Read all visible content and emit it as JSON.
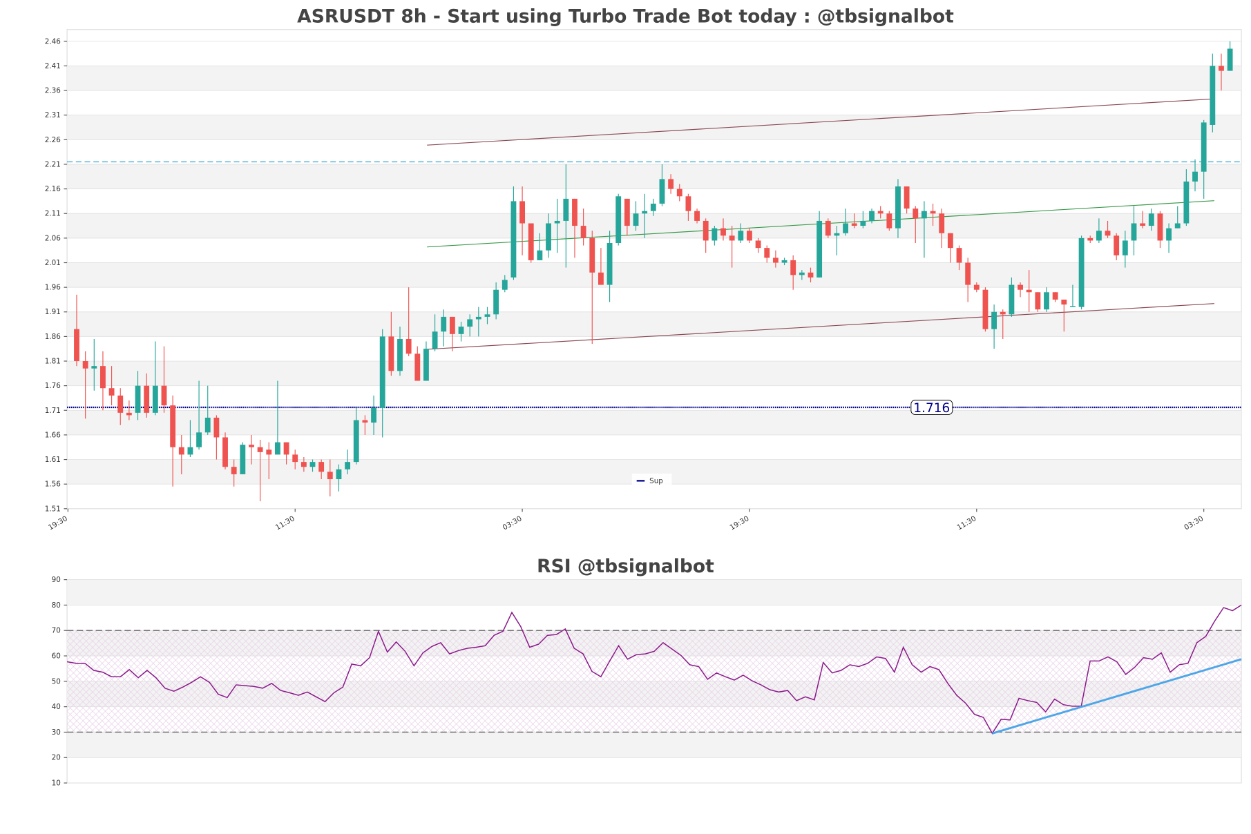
{
  "chart_data": [
    {
      "type": "candlestick",
      "title": "ASRUSDT 8h - Start using Turbo Trade Bot today : @tbsignalbot",
      "xlim": [
        -1.1,
        133.3
      ],
      "xticks": [
        {
          "value": -1,
          "label": "19:30"
        },
        {
          "value": 25,
          "label": "11:30"
        },
        {
          "value": 51,
          "label": "03:30"
        },
        {
          "value": 77,
          "label": "19:30"
        },
        {
          "value": 103,
          "label": "11:30"
        },
        {
          "value": 129,
          "label": "03:30"
        }
      ],
      "ylim": [
        1.51,
        2.484
      ],
      "yticks": [
        1.51,
        1.56,
        1.61,
        1.66,
        1.71,
        1.76,
        1.81,
        1.86,
        1.91,
        1.96,
        2.01,
        2.06,
        2.11,
        2.16,
        2.21,
        2.26,
        2.31,
        2.36,
        2.41,
        2.46
      ],
      "up_color": "#26a69a",
      "down_color": "#ef5350",
      "open": [
        1.875,
        1.81,
        1.795,
        1.8,
        1.755,
        1.74,
        1.705,
        1.705,
        1.76,
        1.705,
        1.76,
        1.72,
        1.635,
        1.62,
        1.635,
        1.665,
        1.695,
        1.655,
        1.595,
        1.58,
        1.64,
        1.635,
        1.63,
        1.62,
        1.645,
        1.62,
        1.605,
        1.595,
        1.605,
        1.585,
        1.57,
        1.59,
        1.605,
        1.69,
        1.685,
        1.715,
        1.86,
        1.79,
        1.855,
        1.825,
        1.77,
        1.835,
        1.87,
        1.9,
        1.865,
        1.88,
        1.895,
        1.9,
        1.905,
        1.955,
        1.98,
        2.135,
        2.09,
        2.015,
        2.035,
        2.09,
        2.095,
        2.14,
        2.085,
        2.06,
        1.99,
        1.965,
        2.05,
        2.14,
        2.085,
        2.11,
        2.115,
        2.13,
        2.18,
        2.16,
        2.145,
        2.115,
        2.095,
        2.055,
        2.08,
        2.065,
        2.055,
        2.075,
        2.055,
        2.04,
        2.02,
        2.01,
        2.015,
        1.985,
        1.99,
        1.98,
        2.095,
        2.065,
        2.07,
        2.09,
        2.085,
        2.095,
        2.115,
        2.11,
        2.08,
        2.165,
        2.12,
        2.1,
        2.115,
        2.11,
        2.07,
        2.04,
        2.01,
        1.965,
        1.955,
        1.875,
        1.91,
        1.905,
        1.965,
        1.955,
        1.95,
        1.915,
        1.95,
        1.935,
        1.92,
        1.92,
        2.06,
        2.055,
        2.075,
        2.065,
        2.025,
        2.055,
        2.09,
        2.085,
        2.11,
        2.055,
        2.08,
        2.09,
        2.175,
        2.195,
        2.29,
        2.41,
        2.4
      ],
      "high": [
        1.945,
        1.83,
        1.855,
        1.83,
        1.8,
        1.755,
        1.73,
        1.79,
        1.785,
        1.85,
        1.84,
        1.74,
        1.66,
        1.69,
        1.77,
        1.76,
        1.7,
        1.665,
        1.61,
        1.645,
        1.66,
        1.65,
        1.645,
        1.77,
        1.645,
        1.63,
        1.615,
        1.61,
        1.61,
        1.61,
        1.6,
        1.63,
        1.715,
        1.7,
        1.74,
        1.875,
        1.91,
        1.88,
        1.96,
        1.84,
        1.85,
        1.905,
        1.915,
        1.9,
        1.89,
        1.905,
        1.92,
        1.92,
        1.97,
        1.985,
        2.165,
        2.165,
        2.09,
        2.07,
        2.11,
        2.14,
        2.21,
        2.14,
        2.12,
        2.075,
        2.04,
        2.075,
        2.15,
        2.14,
        2.135,
        2.15,
        2.14,
        2.21,
        2.19,
        2.17,
        2.15,
        2.12,
        2.1,
        2.085,
        2.1,
        2.085,
        2.09,
        2.08,
        2.06,
        2.045,
        2.035,
        2.02,
        2.025,
        1.995,
        2.0,
        2.115,
        2.1,
        2.085,
        2.12,
        2.11,
        2.115,
        2.12,
        2.125,
        2.115,
        2.18,
        2.165,
        2.125,
        2.135,
        2.13,
        2.12,
        2.07,
        2.045,
        2.02,
        1.97,
        1.96,
        1.925,
        1.915,
        1.98,
        1.97,
        1.995,
        1.95,
        1.96,
        1.95,
        1.935,
        1.965,
        2.065,
        2.065,
        2.1,
        2.095,
        2.07,
        2.075,
        2.125,
        2.115,
        2.12,
        2.115,
        2.09,
        2.125,
        2.2,
        2.22,
        2.3,
        2.435,
        2.435,
        2.46
      ],
      "low": [
        1.8,
        1.693,
        1.75,
        1.71,
        1.72,
        1.68,
        1.69,
        1.69,
        1.695,
        1.7,
        1.705,
        1.555,
        1.58,
        1.615,
        1.63,
        1.66,
        1.61,
        1.59,
        1.555,
        1.58,
        1.6,
        1.525,
        1.57,
        1.62,
        1.6,
        1.59,
        1.585,
        1.585,
        1.57,
        1.535,
        1.545,
        1.58,
        1.6,
        1.66,
        1.66,
        1.655,
        1.78,
        1.78,
        1.82,
        1.77,
        1.77,
        1.83,
        1.84,
        1.83,
        1.85,
        1.86,
        1.86,
        1.885,
        1.895,
        1.95,
        1.975,
        2.025,
        2.01,
        2.015,
        2.02,
        2.03,
        2.0,
        2.02,
        2.045,
        1.845,
        1.965,
        1.93,
        2.045,
        2.065,
        2.075,
        2.06,
        2.105,
        2.125,
        2.15,
        2.135,
        2.095,
        2.09,
        2.03,
        2.045,
        2.055,
        2.0,
        2.05,
        2.05,
        2.03,
        2.01,
        2.0,
        2.005,
        1.955,
        1.975,
        1.97,
        1.98,
        2.06,
        2.025,
        2.065,
        2.08,
        2.08,
        2.09,
        2.1,
        2.075,
        2.06,
        2.11,
        2.05,
        2.02,
        2.085,
        2.04,
        2.01,
        1.995,
        1.93,
        1.95,
        1.87,
        1.835,
        1.855,
        1.9,
        1.94,
        1.91,
        1.91,
        1.91,
        1.93,
        1.87,
        1.92,
        1.915,
        2.05,
        2.05,
        2.06,
        2.015,
        2.0,
        2.025,
        2.08,
        2.075,
        2.04,
        2.03,
        2.08,
        2.085,
        2.155,
        2.14,
        2.275,
        2.36,
        2.4
      ],
      "close": [
        1.81,
        1.795,
        1.8,
        1.755,
        1.74,
        1.705,
        1.7,
        1.76,
        1.705,
        1.76,
        1.72,
        1.635,
        1.62,
        1.635,
        1.665,
        1.695,
        1.655,
        1.595,
        1.58,
        1.64,
        1.635,
        1.625,
        1.62,
        1.645,
        1.62,
        1.605,
        1.595,
        1.605,
        1.585,
        1.57,
        1.59,
        1.605,
        1.69,
        1.685,
        1.715,
        1.86,
        1.79,
        1.855,
        1.825,
        1.77,
        1.835,
        1.87,
        1.9,
        1.865,
        1.88,
        1.895,
        1.9,
        1.905,
        1.955,
        1.975,
        2.135,
        2.09,
        2.015,
        2.035,
        2.09,
        2.095,
        2.14,
        2.085,
        2.06,
        1.99,
        1.965,
        2.05,
        2.145,
        2.085,
        2.11,
        2.115,
        2.13,
        2.18,
        2.16,
        2.145,
        2.115,
        2.095,
        2.055,
        2.08,
        2.065,
        2.055,
        2.075,
        2.055,
        2.04,
        2.02,
        2.01,
        2.015,
        1.985,
        1.99,
        1.98,
        2.095,
        2.065,
        2.07,
        2.09,
        2.085,
        2.095,
        2.115,
        2.11,
        2.08,
        2.165,
        2.12,
        2.1,
        2.115,
        2.11,
        2.07,
        2.04,
        2.01,
        1.965,
        1.955,
        1.875,
        1.91,
        1.905,
        1.965,
        1.955,
        1.95,
        1.915,
        1.95,
        1.935,
        1.925,
        1.922,
        2.06,
        2.055,
        2.075,
        2.065,
        2.025,
        2.055,
        2.09,
        2.085,
        2.11,
        2.055,
        2.08,
        2.09,
        2.175,
        2.195,
        2.295,
        2.41,
        2.4,
        2.445
      ],
      "lines": [
        {
          "x": [
            40.1,
            130.2
          ],
          "values": [
            2.249,
            2.343
          ],
          "color": "#8b4a55"
        },
        {
          "x": [
            40.1,
            130.2
          ],
          "values": [
            2.042,
            2.136
          ],
          "color": "#3a9a4a"
        },
        {
          "x": [
            40.1,
            130.2
          ],
          "values": [
            1.834,
            1.927
          ],
          "color": "#8b4a55"
        }
      ],
      "hline": {
        "value": 2.215,
        "color": "#5ab4d6"
      },
      "support": {
        "name": "Sup",
        "value": 1.716,
        "color": "#00008b"
      },
      "legend": "lower center"
    },
    {
      "type": "line",
      "title": "RSI @tbsignalbot",
      "xlim": [
        0,
        132
      ],
      "ylim": [
        10,
        90
      ],
      "yticks": [
        10,
        20,
        30,
        40,
        50,
        60,
        70,
        80,
        90
      ],
      "color": "#8b1a8b",
      "levels": [
        30,
        70
      ],
      "values": [
        57.7,
        57.1,
        57.1,
        54.3,
        53.6,
        51.8,
        51.8,
        54.6,
        51.4,
        54.3,
        51.4,
        47.3,
        46.1,
        47.7,
        49.6,
        51.8,
        49.6,
        44.9,
        43.6,
        48.6,
        48.3,
        48.0,
        47.3,
        49.2,
        46.4,
        45.5,
        44.5,
        45.8,
        43.9,
        42.0,
        45.5,
        47.7,
        56.8,
        56.1,
        59.3,
        69.7,
        61.5,
        65.5,
        61.8,
        56.1,
        61.2,
        63.7,
        65.2,
        60.8,
        62.1,
        63.0,
        63.4,
        64.0,
        68.1,
        69.7,
        77.1,
        71.5,
        63.4,
        64.6,
        68.1,
        68.4,
        70.6,
        63.0,
        60.8,
        53.9,
        51.8,
        58.0,
        64.0,
        58.7,
        60.5,
        60.8,
        61.8,
        65.2,
        62.7,
        60.2,
        56.5,
        55.8,
        50.8,
        53.3,
        51.8,
        50.5,
        52.4,
        50.2,
        48.6,
        46.7,
        45.8,
        46.4,
        42.4,
        43.9,
        42.7,
        57.4,
        53.3,
        54.3,
        56.5,
        55.8,
        57.1,
        59.6,
        59.0,
        53.6,
        63.4,
        56.5,
        53.6,
        55.8,
        54.6,
        49.2,
        44.5,
        41.4,
        37.0,
        35.8,
        29.5,
        35.1,
        34.8,
        43.3,
        42.4,
        41.7,
        38.0,
        43.0,
        40.8,
        40.2,
        40.2,
        58.0,
        58.0,
        59.6,
        57.7,
        52.7,
        55.5,
        59.3,
        58.7,
        61.2,
        53.6,
        56.5,
        57.1,
        65.2,
        67.7,
        73.7,
        79.0,
        77.8,
        80.0
      ],
      "trend": {
        "x": [
          104,
          132
        ],
        "values": [
          29.5,
          58.7
        ],
        "color": "#4da6e8"
      }
    }
  ]
}
